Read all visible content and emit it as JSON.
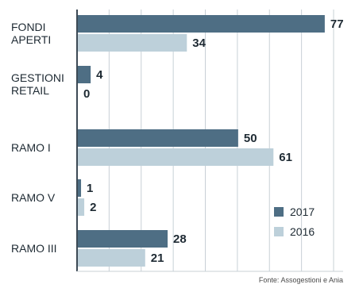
{
  "chart_data": {
    "type": "bar",
    "orientation": "horizontal",
    "categories": [
      "FONDI\nAPERTI",
      "GESTIONI\nRETAIL",
      "RAMO I",
      "RAMO V",
      "RAMO III"
    ],
    "series": [
      {
        "name": "2017",
        "values": [
          77,
          4,
          50,
          1,
          28
        ],
        "color": "#4e6e84"
      },
      {
        "name": "2016",
        "values": [
          34,
          0,
          61,
          2,
          21
        ],
        "color": "#bdd0da"
      }
    ],
    "xlim": [
      0,
      80
    ],
    "grid": true,
    "legend_position": "bottom-right",
    "source": "Fonte: Assogestioni e Ania"
  },
  "colors": {
    "grid": "#c8d0d6",
    "axis": "#3d4a55",
    "text": "#1e2a33"
  }
}
